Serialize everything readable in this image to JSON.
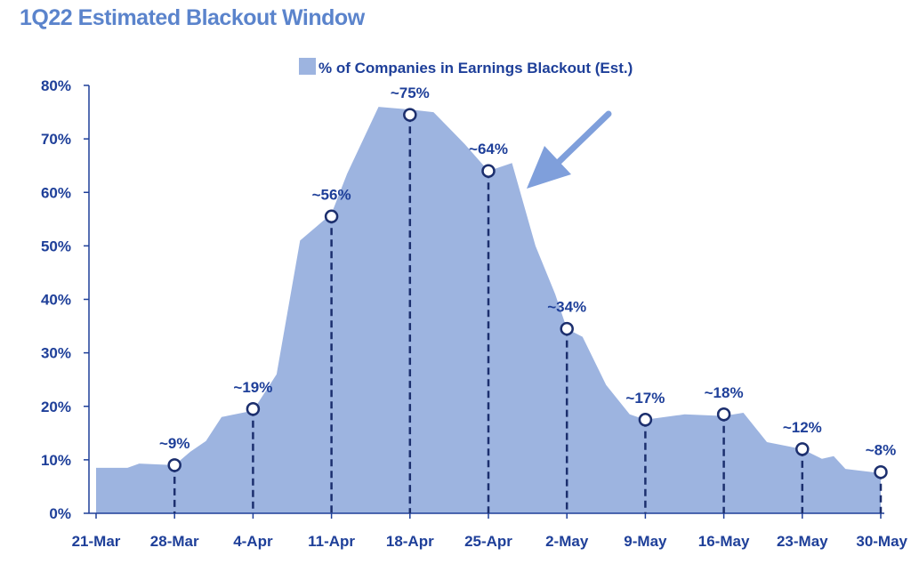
{
  "chart_data": {
    "type": "area",
    "title": "1Q22 Estimated Blackout Window",
    "series": [
      {
        "name": "% of Companies in Earnings Blackout (Est.)",
        "points": [
          [
            0,
            8.5
          ],
          [
            0.4,
            8.5
          ],
          [
            0.55,
            9.3
          ],
          [
            1.0,
            9.0
          ],
          [
            1.2,
            11.5
          ],
          [
            1.4,
            13.5
          ],
          [
            1.6,
            18
          ],
          [
            2.0,
            19.2
          ],
          [
            2.3,
            26
          ],
          [
            2.6,
            51
          ],
          [
            3.0,
            56
          ],
          [
            3.2,
            63.5
          ],
          [
            3.6,
            76
          ],
          [
            4.0,
            75.5
          ],
          [
            4.3,
            75
          ],
          [
            4.7,
            69
          ],
          [
            5.0,
            64
          ],
          [
            5.3,
            65.5
          ],
          [
            5.6,
            50
          ],
          [
            5.85,
            41
          ],
          [
            6.0,
            34.5
          ],
          [
            6.2,
            33
          ],
          [
            6.5,
            24
          ],
          [
            6.8,
            18.5
          ],
          [
            7.0,
            17.5
          ],
          [
            7.5,
            18.5
          ],
          [
            8.0,
            18.2
          ],
          [
            8.25,
            18.8
          ],
          [
            8.55,
            13.3
          ],
          [
            9.0,
            12
          ],
          [
            9.25,
            10.2
          ],
          [
            9.4,
            10.7
          ],
          [
            9.55,
            8.3
          ],
          [
            10.0,
            7.5
          ]
        ]
      }
    ],
    "x_ticks": [
      "21-Mar",
      "28-Mar",
      "4-Apr",
      "11-Apr",
      "18-Apr",
      "25-Apr",
      "2-May",
      "9-May",
      "16-May",
      "23-May",
      "30-May"
    ],
    "y_ticks": [
      "0%",
      "10%",
      "20%",
      "30%",
      "40%",
      "50%",
      "60%",
      "70%",
      "80%"
    ],
    "ylim": [
      0,
      80
    ],
    "callouts": [
      {
        "x": 1,
        "y": 9,
        "label": "~9%"
      },
      {
        "x": 2,
        "y": 19.5,
        "label": "~19%"
      },
      {
        "x": 3,
        "y": 55.5,
        "label": "~56%"
      },
      {
        "x": 4,
        "y": 74.5,
        "label": "~75%"
      },
      {
        "x": 5,
        "y": 64,
        "label": "~64%"
      },
      {
        "x": 6,
        "y": 34.5,
        "label": "~34%"
      },
      {
        "x": 7,
        "y": 17.5,
        "label": "~17%"
      },
      {
        "x": 8,
        "y": 18.5,
        "label": "~18%"
      },
      {
        "x": 9,
        "y": 12,
        "label": "~12%"
      },
      {
        "x": 10,
        "y": 7.7,
        "label": "~8%"
      }
    ],
    "legend_position": "top-center",
    "grid": false,
    "colors": {
      "area": "#9db4e0",
      "text": "#1e3f99",
      "title": "#5b84cc",
      "dashes": "#1c2f6e",
      "arrow": "#7f9fdb"
    }
  }
}
